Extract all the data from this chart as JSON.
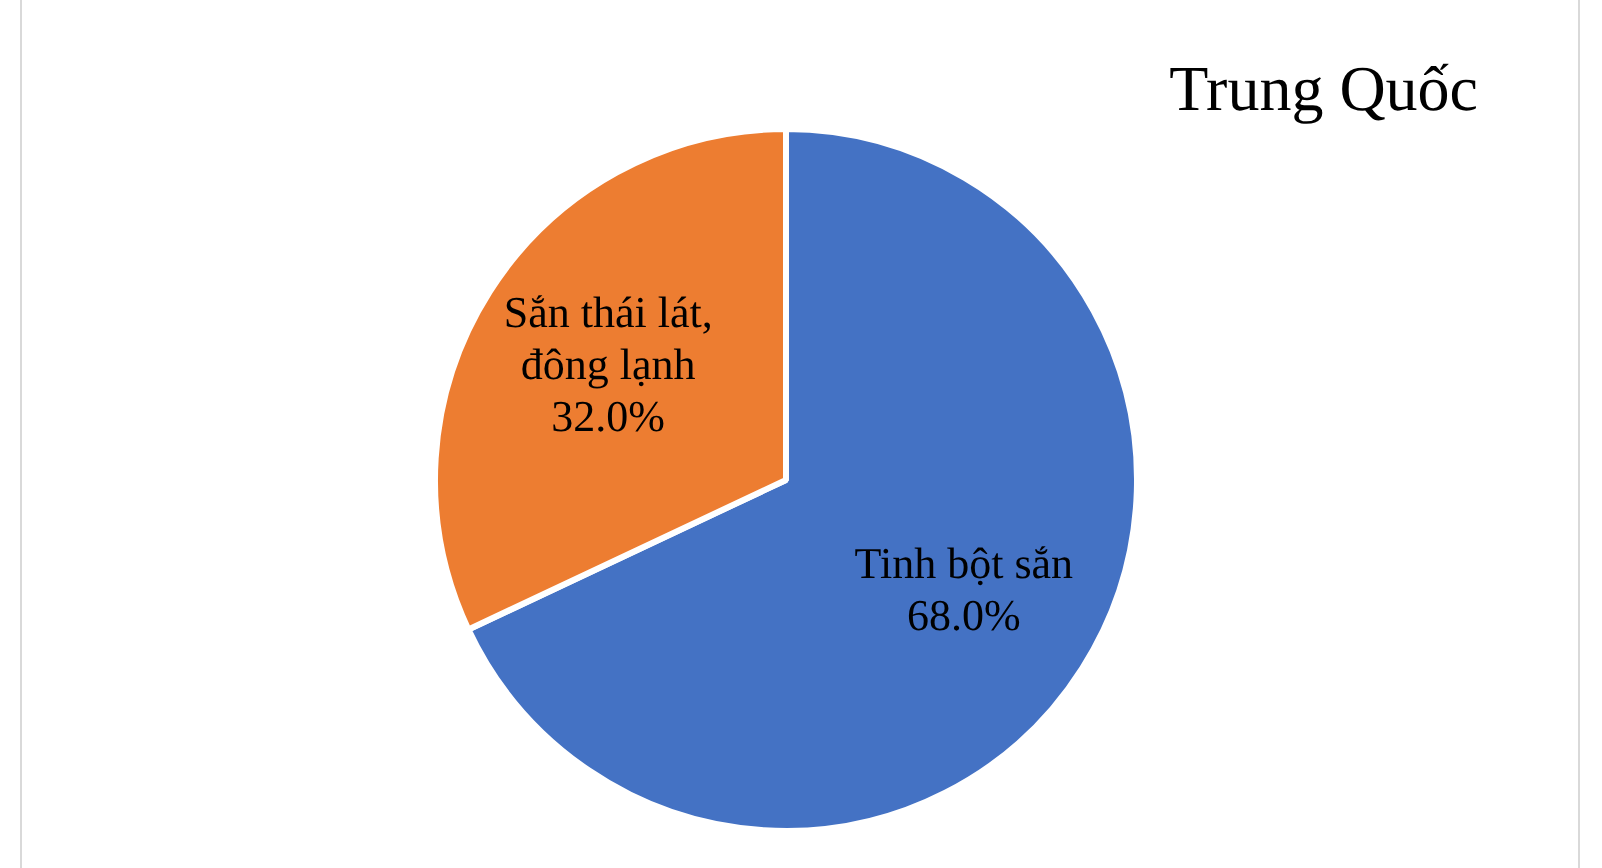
{
  "chart_data": {
    "type": "pie",
    "title": "Trung Quốc",
    "categories": [
      "Tinh bột sắn",
      "Sắn thái lát, đông lạnh"
    ],
    "values": [
      68,
      32
    ],
    "colors": [
      "#4472c4",
      "#ed7d31"
    ],
    "value_labels": [
      "68.0%",
      "32.0%"
    ],
    "legend": false
  }
}
